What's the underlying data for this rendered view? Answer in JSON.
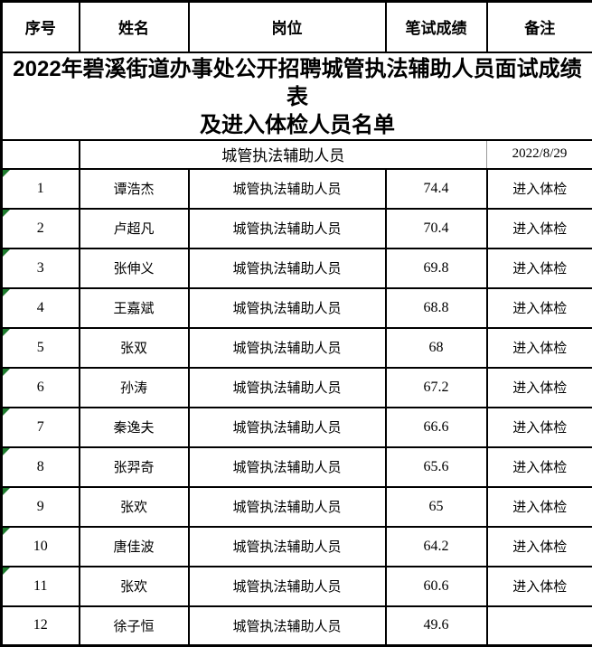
{
  "title": {
    "line1": "2022年碧溪街道办事处公开招聘城管执法辅助人员面试成绩表",
    "line2": "及进入体检人员名单"
  },
  "subtitle": {
    "position_group": "城管执法辅助人员",
    "date": "2022/8/29"
  },
  "table": {
    "headers": [
      "序号",
      "姓名",
      "岗位",
      "笔试成绩",
      "备注"
    ],
    "rows": [
      {
        "no": "1",
        "name": "谭浩杰",
        "position": "城管执法辅助人员",
        "score": "74.4",
        "remark": "进入体检",
        "indicator": true
      },
      {
        "no": "2",
        "name": "卢超凡",
        "position": "城管执法辅助人员",
        "score": "70.4",
        "remark": "进入体检",
        "indicator": true
      },
      {
        "no": "3",
        "name": "张伸义",
        "position": "城管执法辅助人员",
        "score": "69.8",
        "remark": "进入体检",
        "indicator": true
      },
      {
        "no": "4",
        "name": "王嘉斌",
        "position": "城管执法辅助人员",
        "score": "68.8",
        "remark": "进入体检",
        "indicator": true
      },
      {
        "no": "5",
        "name": "张双",
        "position": "城管执法辅助人员",
        "score": "68",
        "remark": "进入体检",
        "indicator": true
      },
      {
        "no": "6",
        "name": "孙涛",
        "position": "城管执法辅助人员",
        "score": "67.2",
        "remark": "进入体检",
        "indicator": true
      },
      {
        "no": "7",
        "name": "秦逸夫",
        "position": "城管执法辅助人员",
        "score": "66.6",
        "remark": "进入体检",
        "indicator": true
      },
      {
        "no": "8",
        "name": "张羿奇",
        "position": "城管执法辅助人员",
        "score": "65.6",
        "remark": "进入体检",
        "indicator": true
      },
      {
        "no": "9",
        "name": "张欢",
        "position": "城管执法辅助人员",
        "score": "65",
        "remark": "进入体检",
        "indicator": true
      },
      {
        "no": "10",
        "name": "唐佳波",
        "position": "城管执法辅助人员",
        "score": "64.2",
        "remark": "进入体检",
        "indicator": true
      },
      {
        "no": "11",
        "name": "张欢",
        "position": "城管执法辅助人员",
        "score": "60.6",
        "remark": "进入体检",
        "indicator": true
      },
      {
        "no": "12",
        "name": "徐子恒",
        "position": "城管执法辅助人员",
        "score": "49.6",
        "remark": "",
        "indicator": false
      }
    ]
  },
  "colors": {
    "border": "#000000",
    "light_border": "#c6c6c6",
    "triangle": "#1e7b2e",
    "background": "#ffffff",
    "text": "#000000"
  }
}
